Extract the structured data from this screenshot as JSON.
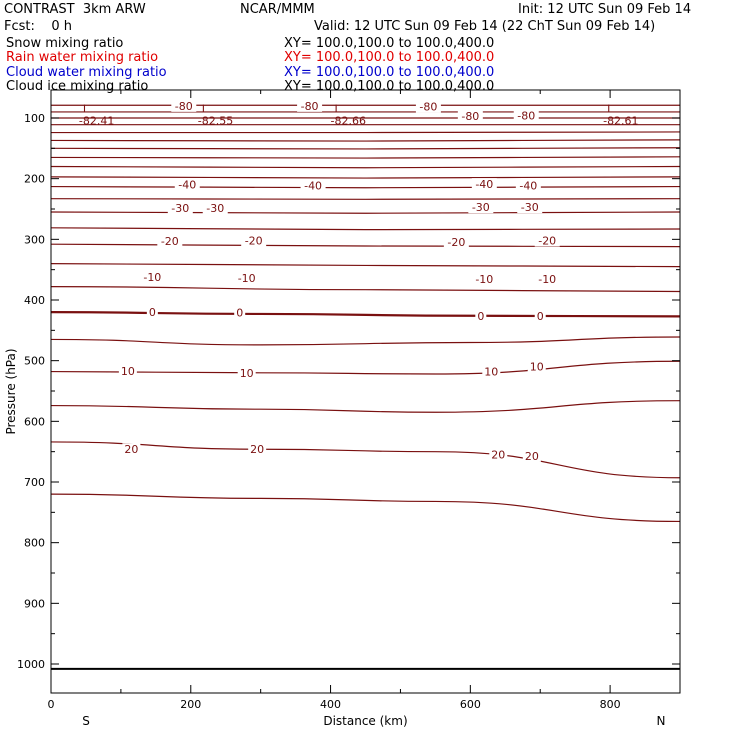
{
  "header": {
    "title": "CONTRAST  3km ARW",
    "center": "NCAR/MMM",
    "init": "Init: 12 UTC Sun 09 Feb 14",
    "fcst": "Fcst:    0 h",
    "valid": "Valid: 12 UTC Sun 09 Feb 14 (22 ChT Sun 09 Feb 14)"
  },
  "fields": [
    {
      "name": "Snow mixing ratio",
      "range": "XY= 100.0,100.0 to 100.0,400.0",
      "color": "#000000"
    },
    {
      "name": "Rain water mixing ratio",
      "range": "XY= 100.0,100.0 to 100.0,400.0",
      "color": "#e00000"
    },
    {
      "name": "Cloud water mixing ratio",
      "range": "XY= 100.0,100.0 to 100.0,400.0",
      "color": "#0000cc"
    },
    {
      "name": "Cloud ice mixing ratio",
      "range": "XY= 100.0,100.0 to 100.0,400.0",
      "color": "#000000"
    }
  ],
  "chart_data": {
    "type": "line",
    "xlabel": "Distance (km)",
    "ylabel": "Pressure (hPa)",
    "xlim": [
      0,
      900
    ],
    "ylim": [
      1050,
      75
    ],
    "x_ticks": [
      0,
      200,
      400,
      600,
      800
    ],
    "y_ticks": [
      100,
      200,
      300,
      400,
      500,
      600,
      700,
      800,
      900,
      1000
    ],
    "x_end_labels": {
      "left": "S",
      "right": "N"
    },
    "contour_color": "#7a1010",
    "ground_pressure": 1008,
    "contours": [
      {
        "level": -80,
        "points": [
          [
            0,
            79
          ],
          [
            300,
            79
          ],
          [
            600,
            79
          ],
          [
            900,
            79
          ]
        ],
        "labels": [
          [
            190,
            80,
            "-80"
          ],
          [
            370,
            80,
            "-80"
          ],
          [
            540,
            81,
            "-80"
          ]
        ]
      },
      {
        "level": -80,
        "points": [
          [
            0,
            90
          ],
          [
            300,
            90
          ],
          [
            600,
            90
          ],
          [
            900,
            90
          ]
        ],
        "labels": [
          [
            600,
            97,
            "-80"
          ],
          [
            680,
            96,
            "-80"
          ]
        ]
      },
      {
        "level": -75,
        "points": [
          [
            0,
            100
          ],
          [
            900,
            100
          ]
        ]
      },
      {
        "level": -70,
        "points": [
          [
            0,
            111
          ],
          [
            900,
            111
          ]
        ]
      },
      {
        "level": -65,
        "points": [
          [
            0,
            124
          ],
          [
            450,
            124
          ],
          [
            900,
            123
          ]
        ]
      },
      {
        "level": -60,
        "points": [
          [
            0,
            137
          ],
          [
            450,
            138
          ],
          [
            900,
            136
          ]
        ]
      },
      {
        "level": -55,
        "points": [
          [
            0,
            150
          ],
          [
            450,
            151
          ],
          [
            900,
            149
          ]
        ]
      },
      {
        "level": -50,
        "points": [
          [
            0,
            165
          ],
          [
            450,
            166
          ],
          [
            900,
            164
          ]
        ]
      },
      {
        "level": -45,
        "points": [
          [
            0,
            180
          ],
          [
            450,
            182
          ],
          [
            900,
            180
          ]
        ]
      },
      {
        "level": -40,
        "points": [
          [
            0,
            197
          ],
          [
            450,
            199
          ],
          [
            900,
            197
          ]
        ],
        "labels": [
          [
            195,
            210,
            "-40"
          ],
          [
            375,
            211,
            "-40"
          ],
          [
            620,
            209,
            "-40"
          ],
          [
            683,
            211,
            "-40"
          ]
        ]
      },
      {
        "level": -35,
        "points": [
          [
            0,
            213
          ],
          [
            450,
            215
          ],
          [
            900,
            213
          ]
        ]
      },
      {
        "level": -30,
        "points": [
          [
            0,
            233
          ],
          [
            450,
            234
          ],
          [
            900,
            233
          ]
        ],
        "labels": [
          [
            185,
            248,
            "-30"
          ],
          [
            235,
            248,
            "-30"
          ],
          [
            615,
            247,
            "-30"
          ],
          [
            685,
            247,
            "-30"
          ]
        ]
      },
      {
        "level": -25,
        "points": [
          [
            0,
            255
          ],
          [
            450,
            257
          ],
          [
            900,
            255
          ]
        ]
      },
      {
        "level": -20,
        "points": [
          [
            0,
            281
          ],
          [
            450,
            284
          ],
          [
            900,
            283
          ]
        ],
        "labels": [
          [
            170,
            303,
            "-20"
          ],
          [
            290,
            302,
            "-20"
          ],
          [
            580,
            304,
            "-20"
          ],
          [
            710,
            302,
            "-20"
          ]
        ]
      },
      {
        "level": -15,
        "points": [
          [
            0,
            308
          ],
          [
            450,
            311
          ],
          [
            900,
            312
          ]
        ]
      },
      {
        "level": -10,
        "points": [
          [
            0,
            340
          ],
          [
            450,
            343
          ],
          [
            900,
            345
          ]
        ],
        "labels": [
          [
            145,
            362,
            "-10"
          ],
          [
            280,
            364,
            "-10"
          ],
          [
            620,
            365,
            "-10"
          ],
          [
            710,
            365,
            "-10"
          ]
        ]
      },
      {
        "level": -5,
        "points": [
          [
            0,
            378
          ],
          [
            450,
            383
          ],
          [
            900,
            386
          ]
        ]
      },
      {
        "level": 0,
        "points": [
          [
            0,
            420
          ],
          [
            300,
            423
          ],
          [
            600,
            426
          ],
          [
            900,
            427
          ]
        ],
        "labels": [
          [
            145,
            420,
            "0"
          ],
          [
            270,
            421,
            "0"
          ],
          [
            615,
            426,
            "0"
          ],
          [
            700,
            426,
            "0"
          ]
        ]
      },
      {
        "level": 5,
        "points": [
          [
            0,
            465
          ],
          [
            300,
            474
          ],
          [
            600,
            470
          ],
          [
            900,
            461
          ]
        ]
      },
      {
        "level": 10,
        "points": [
          [
            0,
            518
          ],
          [
            300,
            520
          ],
          [
            550,
            522
          ],
          [
            900,
            501
          ]
        ],
        "labels": [
          [
            110,
            517,
            "10"
          ],
          [
            280,
            520,
            "10"
          ],
          [
            630,
            518,
            "10"
          ],
          [
            695,
            510,
            "10"
          ]
        ]
      },
      {
        "level": 15,
        "points": [
          [
            0,
            574
          ],
          [
            300,
            580
          ],
          [
            550,
            585
          ],
          [
            900,
            566
          ]
        ]
      },
      {
        "level": 20,
        "points": [
          [
            0,
            634
          ],
          [
            300,
            646
          ],
          [
            550,
            650
          ],
          [
            900,
            693
          ]
        ],
        "labels": [
          [
            115,
            646,
            "20"
          ],
          [
            295,
            646,
            "20"
          ],
          [
            640,
            655,
            "20"
          ],
          [
            688,
            657,
            "20"
          ]
        ]
      },
      {
        "level": 25,
        "points": [
          [
            0,
            720
          ],
          [
            300,
            727
          ],
          [
            550,
            732
          ],
          [
            900,
            765
          ]
        ]
      }
    ],
    "lows": [
      {
        "x": 60,
        "p": 86,
        "value": "-82.41"
      },
      {
        "x": 230,
        "p": 86,
        "value": "-82.55"
      },
      {
        "x": 420,
        "p": 86,
        "value": "-82.66"
      },
      {
        "x": 810,
        "p": 86,
        "value": "-82.61"
      }
    ]
  }
}
